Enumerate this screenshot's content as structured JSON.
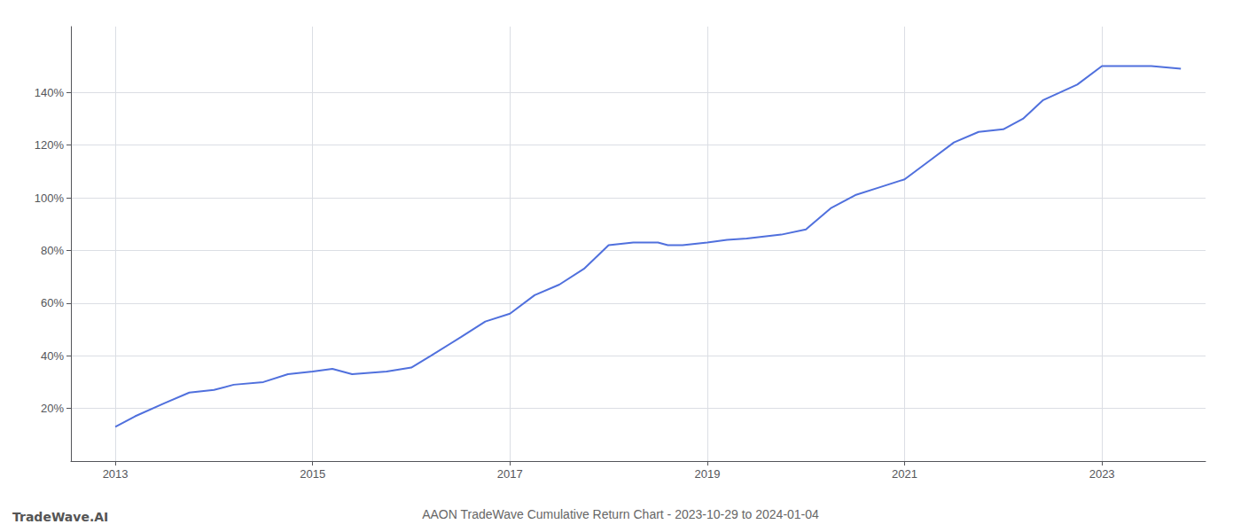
{
  "chart_data": {
    "type": "line",
    "title": "AAON TradeWave Cumulative Return Chart - 2023-10-29 to 2024-01-04",
    "annotations": [
      "TradeWave.AI"
    ],
    "x": [
      2013.0,
      2013.2,
      2013.5,
      2013.75,
      2014.0,
      2014.2,
      2014.5,
      2014.75,
      2015.0,
      2015.2,
      2015.4,
      2015.75,
      2016.0,
      2016.2,
      2016.5,
      2016.75,
      2017.0,
      2017.25,
      2017.5,
      2017.75,
      2018.0,
      2018.25,
      2018.5,
      2018.6,
      2018.75,
      2019.0,
      2019.2,
      2019.4,
      2019.75,
      2020.0,
      2020.25,
      2020.5,
      2020.75,
      2021.0,
      2021.25,
      2021.5,
      2021.75,
      2022.0,
      2022.2,
      2022.4,
      2022.75,
      2023.0,
      2023.5,
      2023.8
    ],
    "values": [
      0.13,
      0.17,
      0.22,
      0.26,
      0.27,
      0.29,
      0.3,
      0.33,
      0.34,
      0.35,
      0.33,
      0.34,
      0.355,
      0.4,
      0.47,
      0.53,
      0.56,
      0.63,
      0.67,
      0.73,
      0.82,
      0.83,
      0.83,
      0.82,
      0.82,
      0.83,
      0.84,
      0.845,
      0.86,
      0.88,
      0.96,
      1.01,
      1.04,
      1.07,
      1.14,
      1.21,
      1.25,
      1.26,
      1.3,
      1.37,
      1.43,
      1.5,
      1.5,
      1.49
    ],
    "xlim": [
      2012.55,
      2024.05
    ],
    "ylim": [
      0.0,
      1.65
    ],
    "xticks": [
      2013,
      2015,
      2017,
      2019,
      2021,
      2023
    ],
    "yticks": [
      {
        "value": 0.2,
        "label": "20%"
      },
      {
        "value": 0.4,
        "label": "40%"
      },
      {
        "value": 0.6,
        "label": "60%"
      },
      {
        "value": 0.8,
        "label": "80%"
      },
      {
        "value": 1.0,
        "label": "100%"
      },
      {
        "value": 1.2,
        "label": "120%"
      },
      {
        "value": 1.4,
        "label": "140%"
      }
    ],
    "grid": true
  }
}
